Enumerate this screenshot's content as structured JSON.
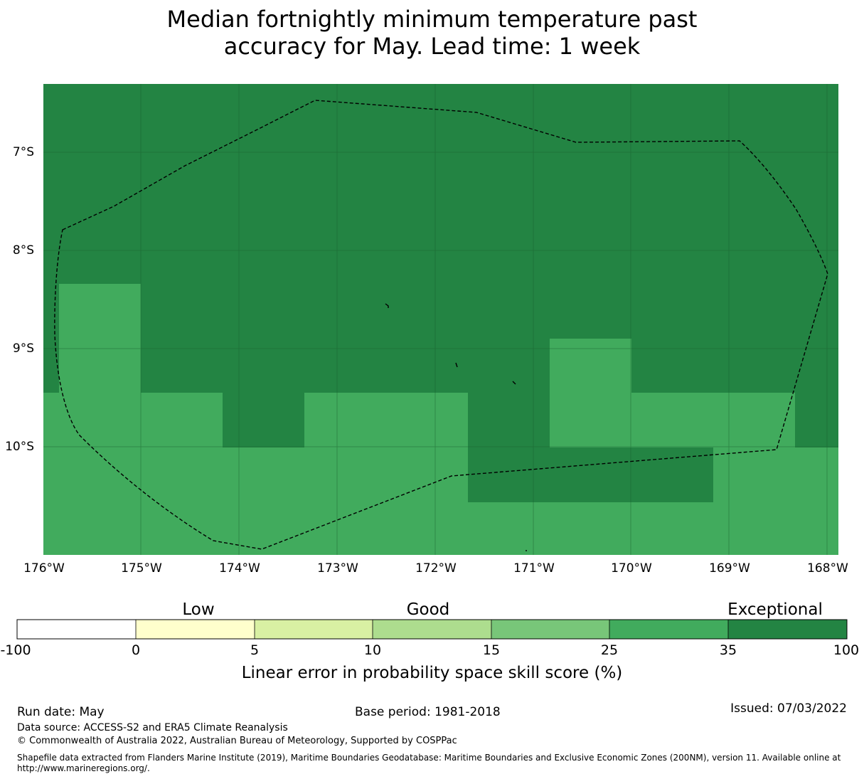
{
  "title": {
    "line1": "Median fortnightly minimum temperature past",
    "line2": "accuracy for May. Lead time: 1 week"
  },
  "colors": {
    "skill_35_100": "#238443",
    "skill_25_35": "#41ab5d",
    "boundary": "#000000",
    "gridline": "#1a5c2e"
  },
  "map": {
    "lat_labels": [
      "7°S",
      "8°S",
      "9°S",
      "10°S"
    ],
    "lon_labels": [
      "176°W",
      "175°W",
      "174°W",
      "173°W",
      "172°W",
      "171°W",
      "170°W",
      "169°W",
      "168°W"
    ]
  },
  "colorbar": {
    "categories": [
      "Low",
      "Good",
      "Exceptional"
    ],
    "ticks": [
      "-100",
      "0",
      "5",
      "10",
      "15",
      "25",
      "35",
      "100"
    ],
    "colors": [
      "#ffffff",
      "#ffffcc",
      "#d9f0a3",
      "#addd8e",
      "#78c679",
      "#41ab5d",
      "#238443"
    ],
    "label": "Linear error in probability space skill score (%)"
  },
  "footer": {
    "run_date": "Run date: May",
    "base_period": "Base period: 1981-2018",
    "issued": "Issued: 07/03/2022",
    "data_source": "Data source: ACCESS-S2 and ERA5 Climate Reanalysis",
    "copyright": "© Commonwealth of Australia 2022, Australian Bureau of Meteorology, Supported by COSPPac",
    "shapefile_line1": "Shapefile data extracted from Flanders Marine Institute (2019), Maritime Boundaries Geodatabase: Maritime Boundaries and Exclusive Economic Zones (200NM), version 11. Available online at",
    "shapefile_line2": "http://www.marineregions.org/."
  }
}
